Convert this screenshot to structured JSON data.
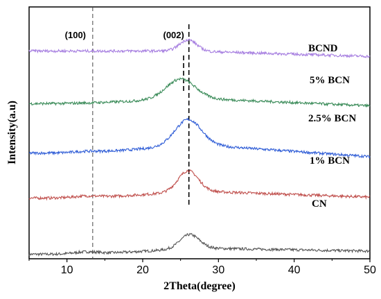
{
  "chart_data": {
    "type": "line",
    "title": "",
    "xlabel": "2Theta(degree)",
    "ylabel": "Intensity(a.u)",
    "xlim": [
      5,
      50
    ],
    "ylim": [
      0,
      5.6
    ],
    "xticks": [
      10,
      20,
      30,
      40,
      50
    ],
    "y_ticks_shown": false,
    "grid": false,
    "legend": "none",
    "series": [
      {
        "name": "CN",
        "color": "#555555",
        "baseline": 0.1,
        "peak_x": 26.2,
        "peak_height": 0.3,
        "peak_width": 4.0,
        "left_height": 0.14,
        "left_bump": 0.04,
        "right_height": 0.07
      },
      {
        "name": "1% BCN",
        "color": "#c0504d",
        "baseline": 1.35,
        "peak_x": 26.0,
        "peak_height": 0.45,
        "peak_width": 4.2,
        "left_height": 0.16,
        "left_bump": 0.03,
        "right_height": 0.02
      },
      {
        "name": "2.5% BCN",
        "color": "#2e5cd6",
        "baseline": 2.35,
        "peak_x": 26.0,
        "peak_height": 0.55,
        "peak_width": 5.5,
        "left_height": 0.2,
        "left_bump": 0.02,
        "right_height": -0.08
      },
      {
        "name": "5% BCN",
        "color": "#3c8c5a",
        "baseline": 3.45,
        "peak_x": 25.0,
        "peak_height": 0.42,
        "peak_width": 6.0,
        "left_height": 0.13,
        "left_bump": 0.0,
        "right_height": -0.05
      },
      {
        "name": "BCND",
        "color": "#a67ee0",
        "baseline": 4.62,
        "peak_x": 26.0,
        "peak_height": 0.25,
        "peak_width": 3.5,
        "left_height": 0.0,
        "left_bump": 0.0,
        "right_height": -0.12
      }
    ],
    "reference_lines": [
      {
        "label": "(100)",
        "x": 13.4
      },
      {
        "label": "(002)",
        "x": 26.1
      }
    ]
  }
}
